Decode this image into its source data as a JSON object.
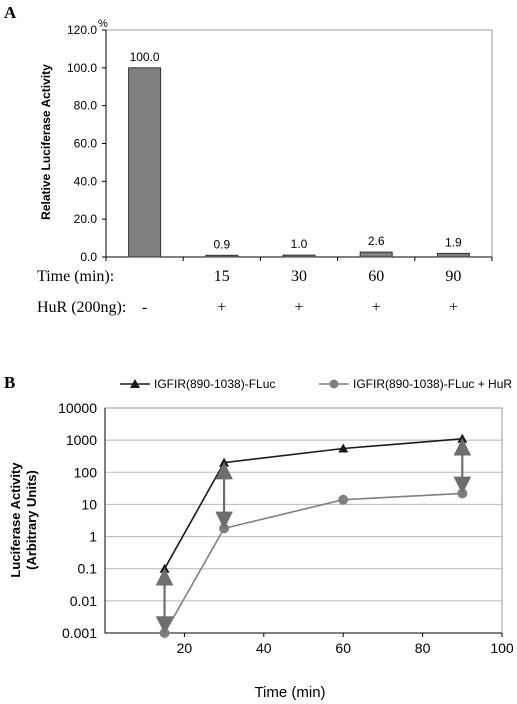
{
  "figure": {
    "panel_a_label": "A",
    "panel_b_label": "B"
  },
  "chart_data": [
    {
      "type": "bar",
      "ylabel": "Relative Luciferase Activity",
      "yunit": "%",
      "ylim": [
        0,
        120
      ],
      "yticks": [
        "0.0",
        "20.0",
        "40.0",
        "60.0",
        "80.0",
        "100.0",
        "120.0"
      ],
      "categories": [
        "-",
        "15",
        "30",
        "60",
        "90"
      ],
      "values": [
        100.0,
        0.9,
        1.0,
        2.6,
        1.9
      ],
      "data_labels": [
        "100.0",
        "0.9",
        "1.0",
        "2.6",
        "1.9"
      ],
      "bar_color": "#7f7f7f",
      "grid": false,
      "table_rows": [
        {
          "label": "Time (min):",
          "cells": [
            "",
            "15",
            "30",
            "60",
            "90"
          ]
        },
        {
          "label": "HuR (200ng):",
          "cells": [
            "-",
            "+",
            "+",
            "+",
            "+"
          ]
        }
      ]
    },
    {
      "type": "line",
      "xlabel": "Time (min)",
      "ylabel_lines": [
        "Luciferase Activity",
        "(Arbitrary Units)"
      ],
      "xlim": [
        0,
        100
      ],
      "xticks": [
        "20",
        "40",
        "60",
        "80",
        "100"
      ],
      "yscale": "log",
      "ylim": [
        0.001,
        10000
      ],
      "yticks": [
        "0.001",
        "0.01",
        "0.1",
        "1",
        "10",
        "100",
        "1000",
        "10000"
      ],
      "grid": true,
      "legend_position": "top",
      "series": [
        {
          "name": "IGFIR(890-1038)-FLuc",
          "x": [
            15,
            30,
            60,
            90
          ],
          "y": [
            0.1,
            200,
            550,
            1100
          ],
          "color": "#1a1a1a",
          "marker": "triangle"
        },
        {
          "name": "IGFIR(890-1038)-FLuc + HuR",
          "x": [
            15,
            30,
            60,
            90
          ],
          "y": [
            0.001,
            1.8,
            14,
            22
          ],
          "color": "#7f7f7f",
          "marker": "circle"
        }
      ],
      "annotations": "double-headed arrows between series at x = 15, 30, 90"
    }
  ]
}
